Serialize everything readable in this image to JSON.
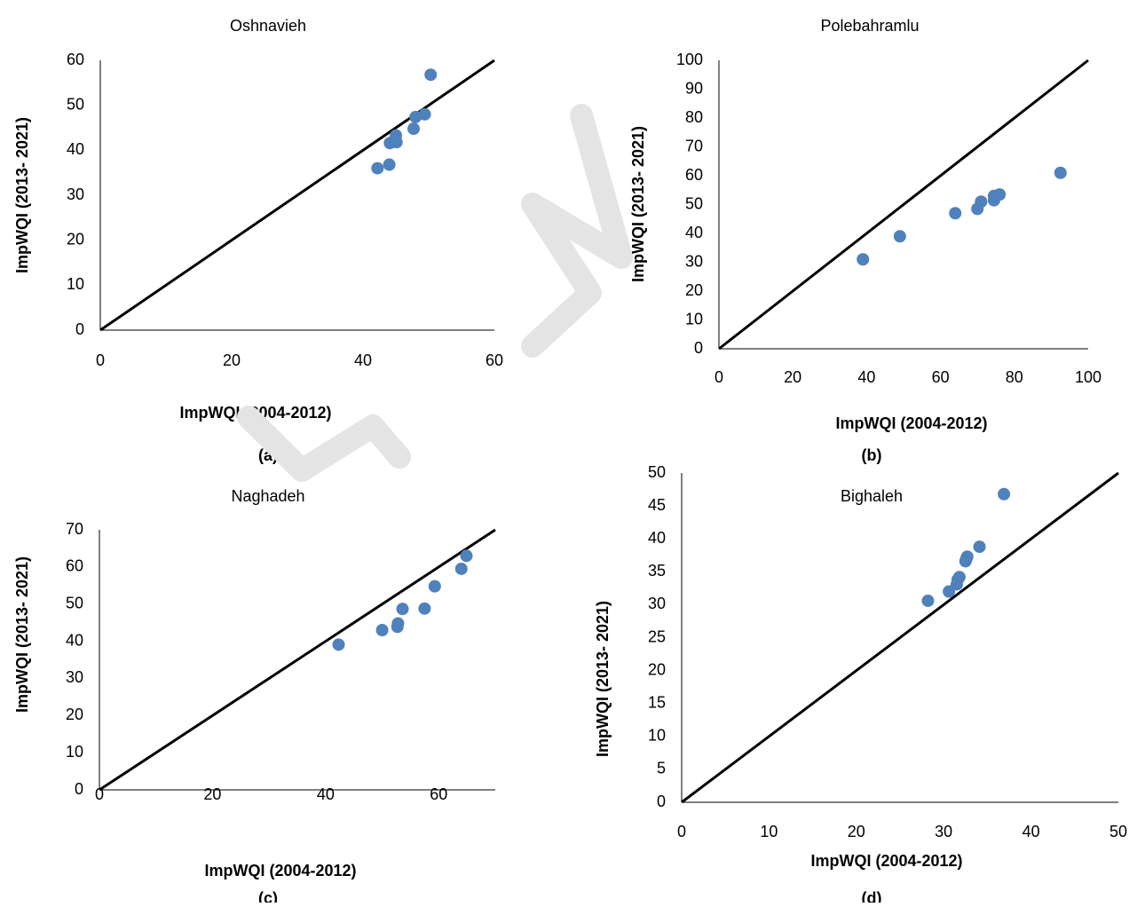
{
  "chart_data": [
    {
      "type": "scatter",
      "panel": "(a)",
      "title": "Oshnavieh",
      "xlabel": "ImpWQI (2004-2012)",
      "ylabel": "ImpWQI (2013- 2021)",
      "xlim": [
        0,
        60
      ],
      "ylim": [
        0,
        60
      ],
      "xticks": [
        0,
        20,
        40,
        60
      ],
      "yticks": [
        0,
        10,
        20,
        30,
        40,
        50,
        60
      ],
      "reference_line": "1:1",
      "series": [
        {
          "color": "#4F81BD",
          "points": [
            [
              42.2,
              36.0
            ],
            [
              44.0,
              36.8
            ],
            [
              44.1,
              41.6
            ],
            [
              44.6,
              42.0
            ],
            [
              45.0,
              43.3
            ],
            [
              45.1,
              41.8
            ],
            [
              47.7,
              44.8
            ],
            [
              48.0,
              47.4
            ],
            [
              49.4,
              48.0
            ],
            [
              50.3,
              56.8
            ]
          ]
        }
      ]
    },
    {
      "type": "scatter",
      "panel": "(b)",
      "title": "Polebahramlu",
      "xlabel": "ImpWQI (2004-2012)",
      "ylabel": "ImpWQI (2013- 2021)",
      "xlim": [
        0,
        100
      ],
      "ylim": [
        0,
        100
      ],
      "xticks": [
        0,
        20,
        40,
        60,
        80,
        100
      ],
      "yticks": [
        0,
        10,
        20,
        30,
        40,
        50,
        60,
        70,
        80,
        90,
        100
      ],
      "reference_line": "1:1",
      "series": [
        {
          "color": "#4F81BD",
          "points": [
            [
              39.0,
              31.0
            ],
            [
              49.0,
              39.0
            ],
            [
              64.0,
              47.0
            ],
            [
              70.0,
              48.5
            ],
            [
              71.0,
              51.0
            ],
            [
              74.5,
              51.5
            ],
            [
              74.5,
              53.0
            ],
            [
              76.0,
              53.5
            ],
            [
              92.5,
              61.0
            ]
          ]
        }
      ]
    },
    {
      "type": "scatter",
      "panel": "(c)",
      "title": "Naghadeh",
      "xlabel": "ImpWQI (2004-2012)",
      "ylabel": "ImpWQI (2013- 2021)",
      "xlim": [
        0,
        70
      ],
      "ylim": [
        0,
        70
      ],
      "xticks": [
        0,
        20,
        40,
        60
      ],
      "yticks": [
        0,
        10,
        20,
        30,
        40,
        50,
        60,
        70
      ],
      "reference_line": "1:1",
      "series": [
        {
          "color": "#4F81BD",
          "points": [
            [
              42.3,
              39.1
            ],
            [
              50.0,
              43.0
            ],
            [
              52.7,
              43.9
            ],
            [
              52.8,
              44.8
            ],
            [
              53.6,
              48.7
            ],
            [
              57.5,
              48.8
            ],
            [
              59.3,
              54.8
            ],
            [
              64.0,
              59.5
            ],
            [
              64.9,
              63.0
            ]
          ]
        }
      ]
    },
    {
      "type": "scatter",
      "panel": "(d)",
      "title": "Bighaleh",
      "xlabel": "ImpWQI (2004-2012)",
      "ylabel": "ImpWQI (2013- 2021)",
      "xlim": [
        0,
        50
      ],
      "ylim": [
        0,
        50
      ],
      "xticks": [
        0,
        10,
        20,
        30,
        40,
        50
      ],
      "yticks": [
        0,
        5,
        10,
        15,
        20,
        25,
        30,
        35,
        40,
        45,
        50
      ],
      "reference_line": "1:1",
      "series": [
        {
          "color": "#4F81BD",
          "points": [
            [
              28.2,
              30.6
            ],
            [
              30.6,
              32.0
            ],
            [
              31.5,
              33.1
            ],
            [
              31.6,
              33.8
            ],
            [
              31.8,
              34.2
            ],
            [
              32.5,
              36.6
            ],
            [
              32.6,
              37.0
            ],
            [
              32.7,
              37.3
            ],
            [
              34.1,
              38.8
            ],
            [
              36.9,
              46.8
            ]
          ]
        }
      ]
    }
  ]
}
